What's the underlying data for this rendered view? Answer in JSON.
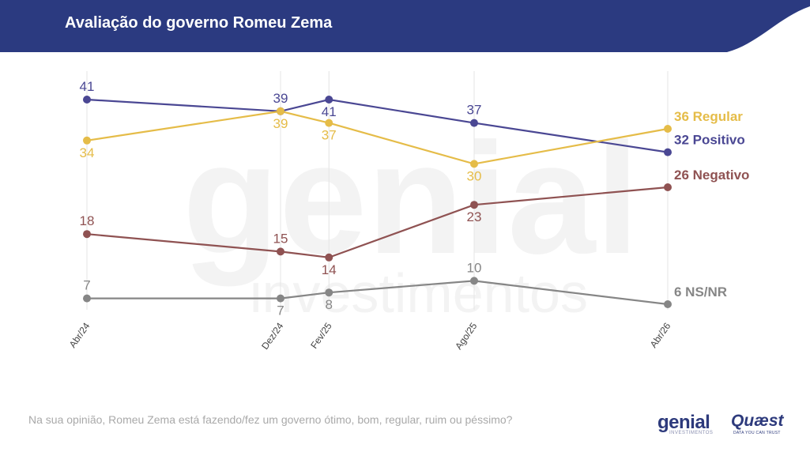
{
  "header": {
    "title": "Avaliação do governo Romeu Zema",
    "color": "#2b3a80"
  },
  "footer": {
    "question": "Na sua opinião, Romeu Zema está fazendo/fez um governo ótimo, bom, regular, ruim ou péssimo?",
    "logo_genial": "genial",
    "logo_genial_sub": "INVESTIMENTOS",
    "logo_quaest": "Quæst",
    "logo_quaest_sub": "DATA YOU CAN TRUST"
  },
  "watermark": {
    "line1": "genial",
    "line2": "investimentos"
  },
  "chart_data": {
    "type": "line",
    "x": [
      "Abr/24",
      "Dez/24",
      "Fev/25",
      "Ago/25",
      "Abr/26"
    ],
    "ylim": [
      0,
      45
    ],
    "grid": "vertical",
    "series": [
      {
        "name": "Positivo",
        "end_label": "32 Positivo",
        "color": "#4a4793",
        "values": [
          41,
          39,
          41,
          37,
          32
        ],
        "label_pos": [
          "above",
          "above",
          "below",
          "above",
          "end"
        ]
      },
      {
        "name": "Regular",
        "end_label": "36 Regular",
        "color": "#e5bc48",
        "values": [
          34,
          39,
          37,
          30,
          36
        ],
        "label_pos": [
          "below",
          "below",
          "below",
          "below",
          "end"
        ]
      },
      {
        "name": "Negativo",
        "end_label": "26 Negativo",
        "color": "#8f5252",
        "values": [
          18,
          15,
          14,
          23,
          26
        ],
        "label_pos": [
          "above",
          "above",
          "below",
          "below",
          "end"
        ]
      },
      {
        "name": "NS/NR",
        "end_label": "6 NS/NR",
        "color": "#868686",
        "values": [
          7,
          7,
          8,
          10,
          6
        ],
        "label_pos": [
          "above",
          "below",
          "below",
          "above",
          "end"
        ]
      }
    ]
  }
}
